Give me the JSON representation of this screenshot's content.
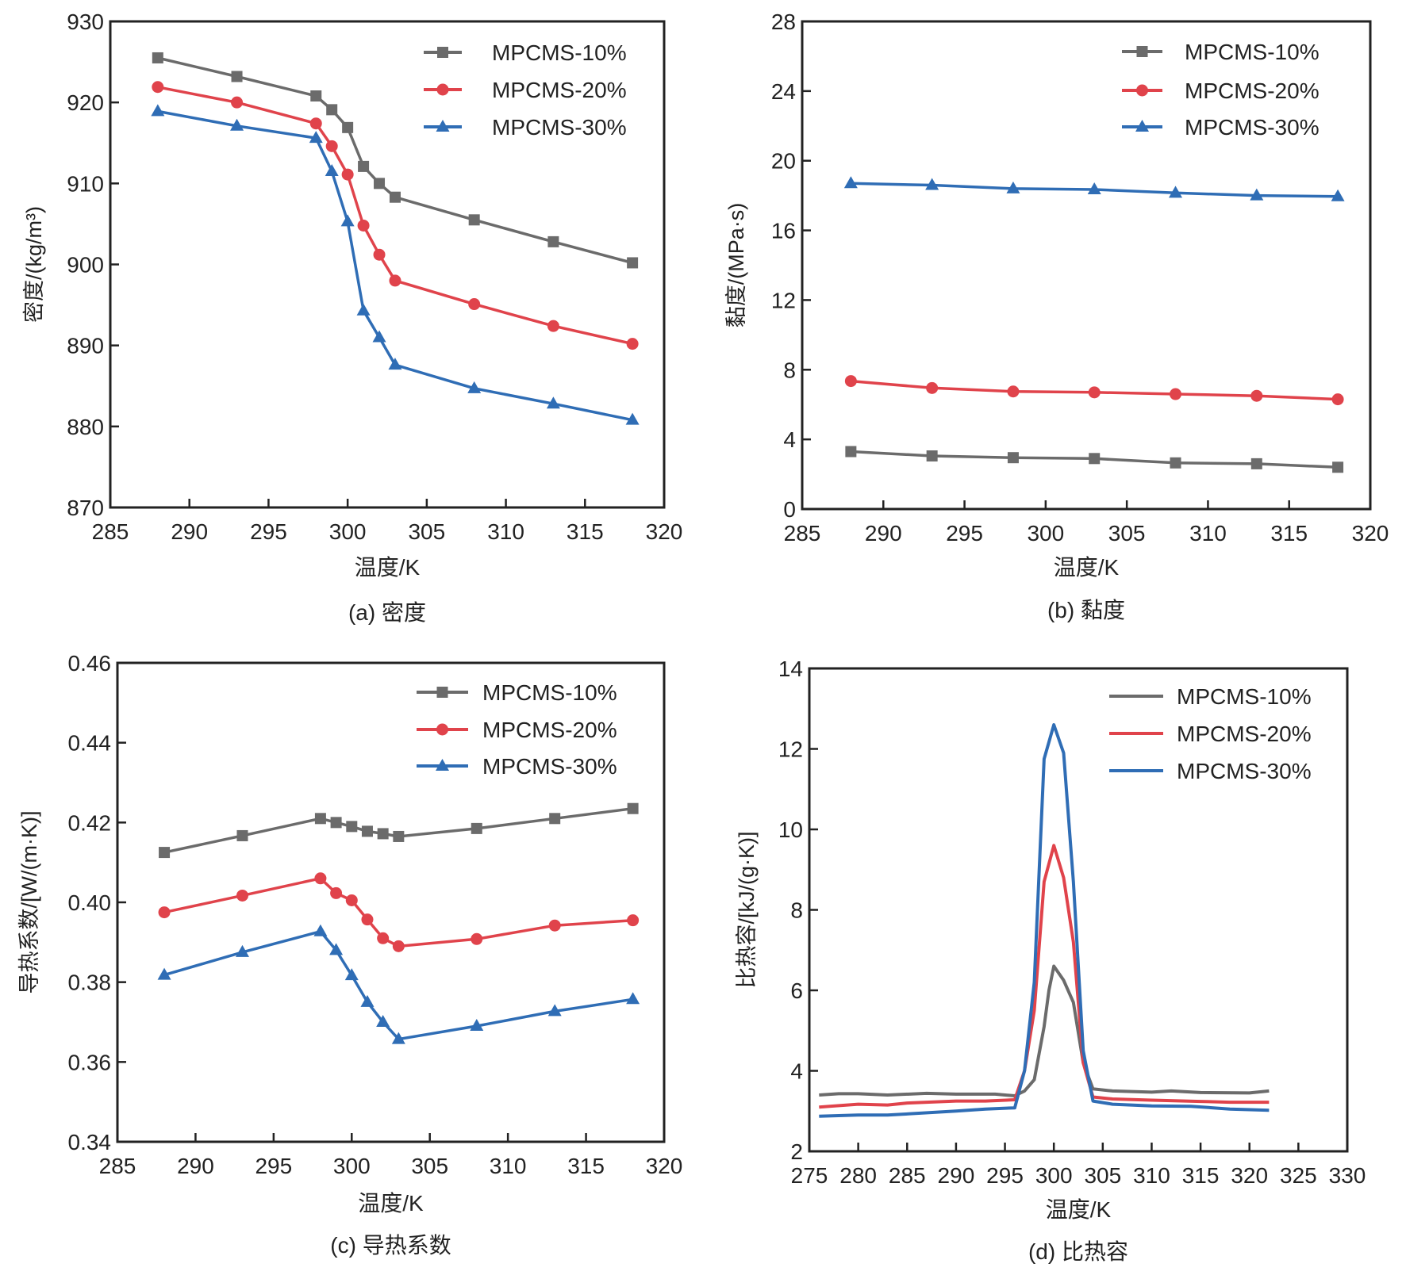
{
  "colors": {
    "s10": "#6b6b6b",
    "s20": "#e0434b",
    "s30": "#2f6db5"
  },
  "chart_data": [
    {
      "id": "a",
      "type": "line",
      "caption": "(a) 密度",
      "xlabel": "温度/K",
      "ylabel": "密度/(kg/m³)",
      "xlim": [
        285,
        320
      ],
      "ylim": [
        870,
        930
      ],
      "xticks": [
        285,
        290,
        295,
        300,
        305,
        310,
        315,
        320
      ],
      "yticks": [
        870,
        880,
        890,
        900,
        910,
        920,
        930
      ],
      "markers": true,
      "legend": "top-right",
      "x": [
        288,
        293,
        298,
        299,
        300,
        301,
        302,
        303,
        308,
        313,
        318
      ],
      "series": [
        {
          "name": "MPCMS-10%",
          "marker": "square",
          "values": [
            925.5,
            923.2,
            920.8,
            919.1,
            916.9,
            912.1,
            910.0,
            908.3,
            905.5,
            902.8,
            900.2
          ]
        },
        {
          "name": "MPCMS-20%",
          "marker": "circle",
          "values": [
            921.9,
            920.0,
            917.4,
            914.6,
            911.1,
            904.8,
            901.2,
            898.0,
            895.1,
            892.4,
            890.2
          ]
        },
        {
          "name": "MPCMS-30%",
          "marker": "triangle",
          "values": [
            918.9,
            917.1,
            915.6,
            911.5,
            905.3,
            894.3,
            891.0,
            887.6,
            884.7,
            882.8,
            880.8
          ]
        }
      ]
    },
    {
      "id": "b",
      "type": "line",
      "caption": "(b) 黏度",
      "xlabel": "温度/K",
      "ylabel": "黏度/(MPa·s)",
      "xlim": [
        285,
        320
      ],
      "ylim": [
        0,
        28
      ],
      "xticks": [
        285,
        290,
        295,
        300,
        305,
        310,
        315,
        320
      ],
      "yticks": [
        0,
        4,
        8,
        12,
        16,
        20,
        24,
        28
      ],
      "markers": true,
      "legend": "top-right",
      "x": [
        288,
        293,
        298,
        303,
        308,
        313,
        318
      ],
      "series": [
        {
          "name": "MPCMS-10%",
          "marker": "square",
          "values": [
            3.3,
            3.05,
            2.95,
            2.9,
            2.65,
            2.6,
            2.4
          ]
        },
        {
          "name": "MPCMS-20%",
          "marker": "circle",
          "values": [
            7.35,
            6.95,
            6.75,
            6.7,
            6.6,
            6.5,
            6.3
          ]
        },
        {
          "name": "MPCMS-30%",
          "marker": "triangle",
          "values": [
            18.7,
            18.6,
            18.4,
            18.35,
            18.15,
            18.0,
            17.95
          ]
        }
      ]
    },
    {
      "id": "c",
      "type": "line",
      "caption": "(c) 导热系数",
      "xlabel": "温度/K",
      "ylabel": "导热系数/[W/(m·K)]",
      "xlim": [
        285,
        320
      ],
      "ylim": [
        0.34,
        0.46
      ],
      "xticks": [
        285,
        290,
        295,
        300,
        305,
        310,
        315,
        320
      ],
      "yticks": [
        "0.34",
        "0.36",
        "0.38",
        "0.40",
        "0.42",
        "0.44",
        "0.46"
      ],
      "markers": true,
      "legend": "top-right",
      "x": [
        288,
        293,
        298,
        299,
        300,
        301,
        302,
        303,
        308,
        313,
        318
      ],
      "series": [
        {
          "name": "MPCMS-10%",
          "marker": "square",
          "values": [
            0.4125,
            0.4167,
            0.421,
            0.42,
            0.419,
            0.4178,
            0.4172,
            0.4165,
            0.4185,
            0.421,
            0.4235
          ]
        },
        {
          "name": "MPCMS-20%",
          "marker": "circle",
          "values": [
            0.3975,
            0.4017,
            0.406,
            0.4023,
            0.4005,
            0.3957,
            0.391,
            0.389,
            0.3908,
            0.3942,
            0.3955
          ]
        },
        {
          "name": "MPCMS-30%",
          "marker": "triangle",
          "values": [
            0.3818,
            0.3875,
            0.3927,
            0.388,
            0.3817,
            0.375,
            0.37,
            0.3657,
            0.369,
            0.3727,
            0.3757
          ]
        }
      ]
    },
    {
      "id": "d",
      "type": "line",
      "caption": "(d) 比热容",
      "xlabel": "温度/K",
      "ylabel": "比热容/[kJ/(g·K)]",
      "xlim": [
        275,
        330
      ],
      "ylim": [
        2,
        14
      ],
      "xticks": [
        275,
        280,
        285,
        290,
        295,
        300,
        305,
        310,
        315,
        320,
        325,
        330
      ],
      "yticks": [
        2,
        4,
        6,
        8,
        10,
        12,
        14
      ],
      "markers": false,
      "legend": "top-right",
      "series": [
        {
          "name": "MPCMS-10%",
          "x": [
            276,
            278,
            280,
            283,
            287,
            290,
            294,
            296,
            297,
            298,
            299,
            299.5,
            300,
            301,
            302,
            303,
            304,
            306,
            310,
            312,
            315,
            320,
            322
          ],
          "values": [
            3.4,
            3.43,
            3.43,
            3.4,
            3.44,
            3.42,
            3.42,
            3.38,
            3.5,
            3.78,
            5.1,
            6.0,
            6.6,
            6.25,
            5.7,
            4.2,
            3.55,
            3.5,
            3.47,
            3.5,
            3.46,
            3.45,
            3.5
          ]
        },
        {
          "name": "MPCMS-20%",
          "x": [
            276,
            280,
            283,
            285,
            290,
            293,
            296,
            297,
            298,
            299,
            300,
            301,
            302,
            303,
            304,
            306,
            310,
            315,
            318,
            322
          ],
          "values": [
            3.1,
            3.17,
            3.15,
            3.2,
            3.25,
            3.25,
            3.28,
            4.0,
            5.5,
            8.7,
            9.6,
            8.8,
            7.2,
            4.2,
            3.35,
            3.3,
            3.27,
            3.24,
            3.22,
            3.22
          ]
        },
        {
          "name": "MPCMS-30%",
          "x": [
            276,
            280,
            283,
            290,
            293,
            296,
            297,
            298,
            299,
            300,
            301,
            302,
            303,
            304,
            306,
            310,
            314,
            318,
            322
          ],
          "values": [
            2.87,
            2.9,
            2.9,
            3.0,
            3.05,
            3.08,
            4.0,
            6.2,
            11.75,
            12.6,
            11.9,
            8.7,
            4.5,
            3.25,
            3.17,
            3.13,
            3.12,
            3.05,
            3.02
          ]
        }
      ]
    }
  ]
}
